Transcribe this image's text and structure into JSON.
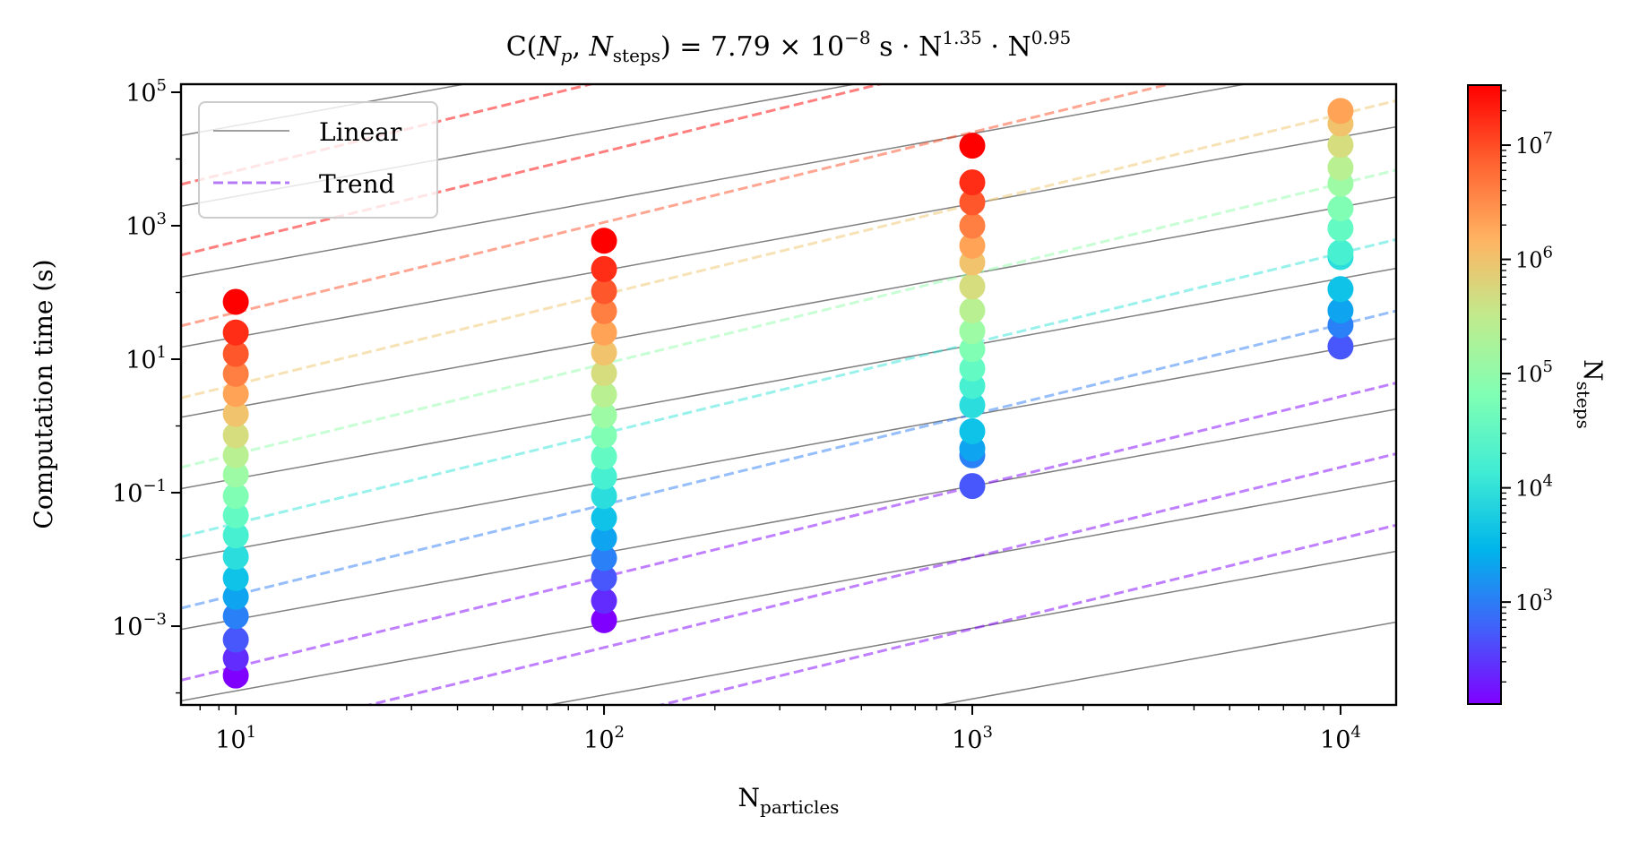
{
  "chart_data": {
    "type": "scatter",
    "title": {
      "prefix": "C(",
      "np_symbol": "N",
      "np_sub": "p",
      "sep": ", ",
      "nsteps_symbol": "N",
      "nsteps_sub": "steps",
      "mid": ") = 7.79 × 10",
      "exp_coeff": "−8",
      "unit": " s · N",
      "np_exp": "1.35",
      "dot": " · N",
      "nsteps_exp": "0.95"
    },
    "fit": {
      "coefficient_s": 7.79e-08,
      "np_exponent": 1.35,
      "nsteps_exponent": 0.95
    },
    "xlabel": {
      "main": "N",
      "sub": "particles"
    },
    "ylabel": "Computation time (s)",
    "xscale": "log",
    "yscale": "log",
    "xlim": [
      7.1,
      14160
    ],
    "ylim": [
      6.6e-05,
      132000.0
    ],
    "x_ticks": [
      {
        "value": 10,
        "base": "10",
        "exp": "1"
      },
      {
        "value": 100,
        "base": "10",
        "exp": "2"
      },
      {
        "value": 1000,
        "base": "10",
        "exp": "3"
      },
      {
        "value": 10000,
        "base": "10",
        "exp": "4"
      }
    ],
    "y_ticks": [
      {
        "value": 100000.0,
        "base": "10",
        "exp": "5"
      },
      {
        "value": 1000.0,
        "base": "10",
        "exp": "3"
      },
      {
        "value": 10.0,
        "base": "10",
        "exp": "1"
      },
      {
        "value": 0.1,
        "base": "10",
        "exp": "−1"
      },
      {
        "value": 0.001,
        "base": "10",
        "exp": "−3"
      }
    ],
    "legend": {
      "position": "top-left",
      "entries": [
        {
          "label": "Linear",
          "style": "solid",
          "color": "#808080"
        },
        {
          "label": "Trend",
          "style": "dashed",
          "color": "#b57bf7"
        }
      ]
    },
    "colorbar": {
      "label": {
        "main": "N",
        "sub": "steps"
      },
      "scale": "log",
      "range": [
        128,
        33554432
      ],
      "colormap": "rainbow",
      "ticks": [
        {
          "value": 1000.0,
          "base": "10",
          "exp": "3"
        },
        {
          "value": 10000.0,
          "base": "10",
          "exp": "4"
        },
        {
          "value": 100000.0,
          "base": "10",
          "exp": "5"
        },
        {
          "value": 1000000.0,
          "base": "10",
          "exp": "6"
        },
        {
          "value": 10000000.0,
          "base": "10",
          "exp": "7"
        }
      ]
    },
    "linear_reference_lines": {
      "description": "C proportional to N_particles; value of C (s) at N_particles = 10",
      "log10_C_at_Np10": [
        4.5,
        3.44,
        2.38,
        1.33,
        0.28,
        -0.79,
        -1.84,
        -2.9,
        -3.97,
        -5.03,
        -6.09
      ]
    },
    "trend_lines": {
      "description": "C proportional to N_particles^1.35, one per N_steps level; value of C (s) at N_particles = 10",
      "lines": [
        {
          "nsteps": 1.0,
          "log10_C_at_Np10": -5.74
        },
        {
          "nsteps": 10.0,
          "log10_C_at_Np10": -4.67
        },
        {
          "nsteps": 100.0,
          "log10_C_at_Np10": -3.61
        },
        {
          "nsteps": 1000.0,
          "log10_C_at_Np10": -2.53
        },
        {
          "nsteps": 10000.0,
          "log10_C_at_Np10": -1.46
        },
        {
          "nsteps": 100000.0,
          "log10_C_at_Np10": -0.42
        },
        {
          "nsteps": 1000000.0,
          "log10_C_at_Np10": 0.62
        },
        {
          "nsteps": 10000000.0,
          "log10_C_at_Np10": 1.7
        },
        {
          "nsteps": 100000000.0,
          "log10_C_at_Np10": 2.76
        },
        {
          "nsteps": 1000000000.0,
          "log10_C_at_Np10": 3.82
        }
      ]
    },
    "series": [
      {
        "name": "N_particles = 10",
        "n_particles": 10,
        "nsteps_log2": [
          7,
          8,
          9,
          10,
          11,
          12,
          13,
          14,
          15,
          16,
          17,
          18,
          19,
          20,
          21,
          22,
          23,
          24,
          25
        ],
        "log10_C": [
          -3.74,
          -3.48,
          -3.2,
          -2.85,
          -2.56,
          -2.28,
          -1.96,
          -1.64,
          -1.34,
          -1.05,
          -0.73,
          -0.44,
          -0.14,
          0.18,
          0.48,
          0.78,
          1.08,
          1.4,
          1.86
        ]
      },
      {
        "name": "N_particles = 100",
        "n_particles": 100,
        "nsteps_log2": [
          7,
          8,
          9,
          10,
          11,
          12,
          13,
          14,
          15,
          16,
          17,
          18,
          19,
          20,
          21,
          22,
          23,
          24,
          25
        ],
        "log10_C": [
          -2.91,
          -2.62,
          -2.28,
          -1.98,
          -1.68,
          -1.38,
          -1.05,
          -0.76,
          -0.46,
          -0.14,
          0.16,
          0.47,
          0.79,
          1.1,
          1.4,
          1.72,
          2.02,
          2.35,
          2.775
        ]
      },
      {
        "name": "N_particles = 1000",
        "n_particles": 1000,
        "nsteps_log2": [
          9,
          10,
          11,
          12,
          13,
          14,
          15,
          16,
          17,
          18,
          19,
          20,
          21,
          22,
          23,
          24,
          25
        ],
        "log10_C": [
          -0.9,
          -0.44,
          -0.34,
          -0.08,
          0.31,
          0.6,
          0.86,
          1.15,
          1.42,
          1.73,
          2.09,
          2.45,
          2.7,
          3.0,
          3.35,
          3.65,
          4.2
        ]
      },
      {
        "name": "N_particles = 10000",
        "n_particles": 10000,
        "nsteps_log2": [
          9,
          10,
          11,
          12,
          13,
          14,
          15,
          16,
          17,
          18,
          19,
          20,
          21
        ],
        "log10_C": [
          1.19,
          1.51,
          1.73,
          2.05,
          2.53,
          2.6,
          2.96,
          3.26,
          3.63,
          3.87,
          4.21,
          4.53,
          4.72
        ]
      }
    ]
  }
}
